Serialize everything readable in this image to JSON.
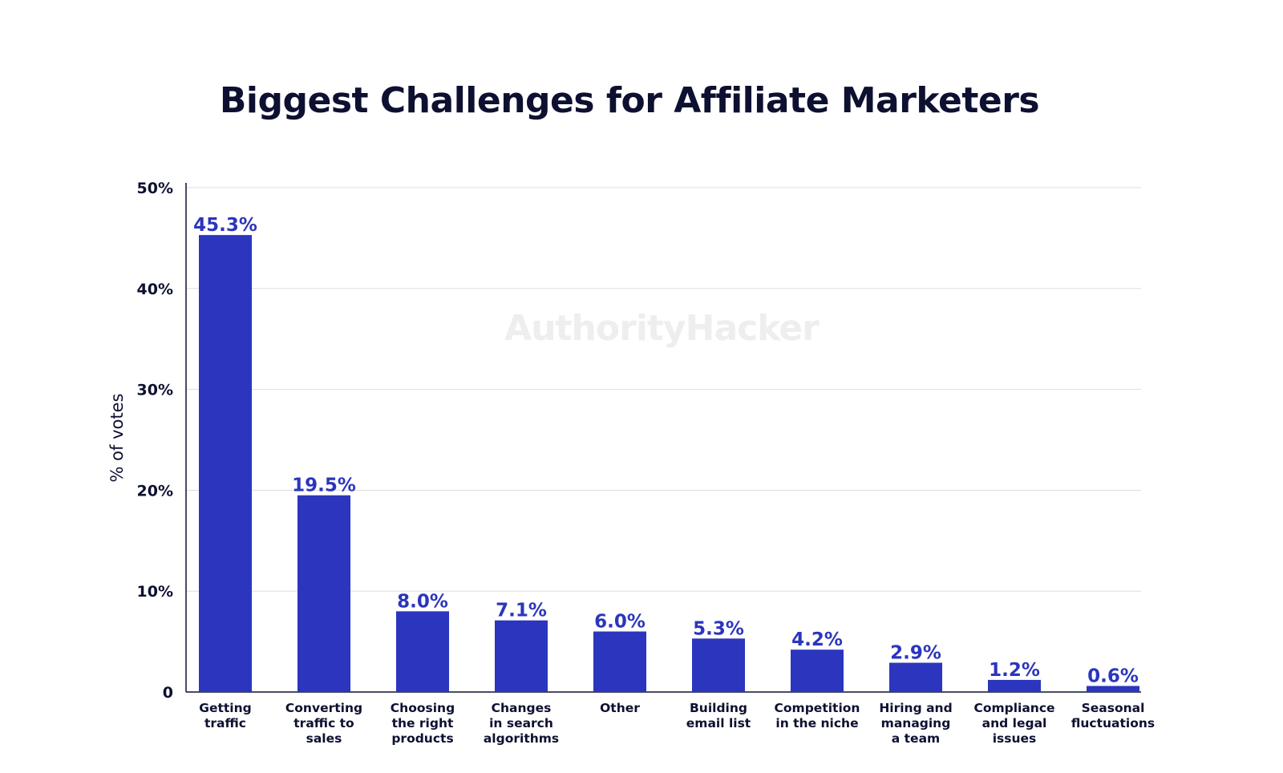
{
  "chart_data": {
    "type": "bar",
    "title": "Biggest Challenges for Affiliate Marketers",
    "xlabel": "",
    "ylabel": "% of votes",
    "watermark": "AuthorityHacker",
    "ylim": [
      0,
      50
    ],
    "yticks": [
      {
        "value": 0,
        "label": "0"
      },
      {
        "value": 10,
        "label": "10%"
      },
      {
        "value": 20,
        "label": "20%"
      },
      {
        "value": 30,
        "label": "30%"
      },
      {
        "value": 40,
        "label": "40%"
      },
      {
        "value": 50,
        "label": "50%"
      }
    ],
    "grid": true,
    "categories": [
      [
        "Getting",
        "traffic"
      ],
      [
        "Converting",
        "traffic to",
        "sales"
      ],
      [
        "Choosing",
        "the right",
        "products"
      ],
      [
        "Changes",
        "in search",
        "algorithms"
      ],
      [
        "Other"
      ],
      [
        "Building",
        "email list"
      ],
      [
        "Competition",
        "in the niche"
      ],
      [
        "Hiring and",
        "managing",
        "a team"
      ],
      [
        "Compliance",
        "and legal",
        "issues"
      ],
      [
        "Seasonal",
        "fluctuations"
      ]
    ],
    "values": [
      45.3,
      19.5,
      8.0,
      7.1,
      6.0,
      5.3,
      4.2,
      2.9,
      1.2,
      0.6
    ],
    "value_labels": [
      "45.3%",
      "19.5%",
      "8.0%",
      "7.1%",
      "6.0%",
      "5.3%",
      "4.2%",
      "2.9%",
      "1.2%",
      "0.6%"
    ],
    "colors": {
      "bar": "#2b35bd",
      "value_label": "#2b35bd",
      "text": "#0d1030",
      "grid": "#dddddd",
      "axis": "#0d1030",
      "watermark": "#eeeeee"
    }
  }
}
